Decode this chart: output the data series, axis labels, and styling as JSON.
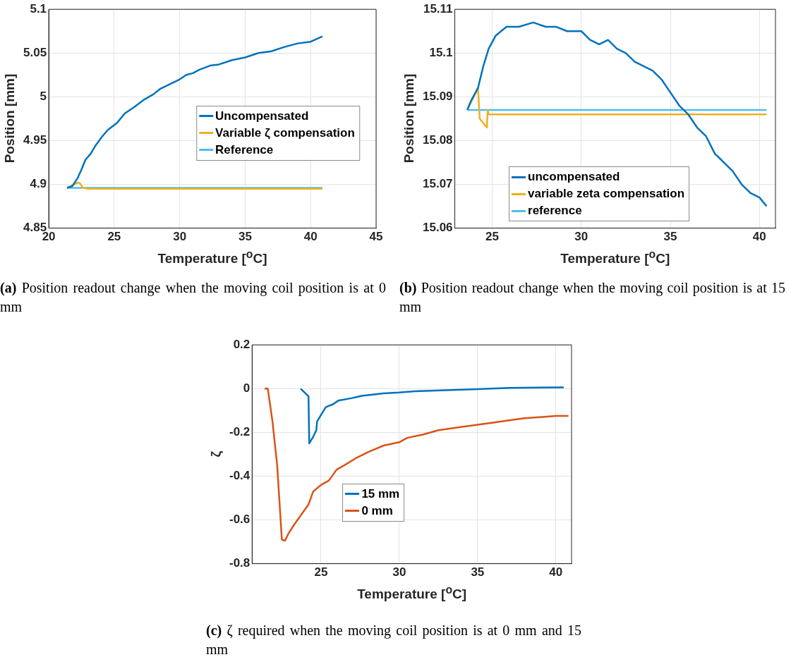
{
  "chart_data": [
    {
      "type": "line",
      "xlabel": "Temperature [$^{o}$C]",
      "ylabel": "Position [mm]",
      "xlim": [
        20,
        45
      ],
      "xticks": [
        20,
        25,
        30,
        35,
        40,
        45
      ],
      "ylim": [
        4.85,
        5.1
      ],
      "yticks": [
        4.85,
        4.9,
        4.95,
        5,
        5.05,
        5.1
      ],
      "grid": true,
      "legend": "right",
      "marker": "none",
      "annotations": [
        "(a) Position readout change when the moving coil position is at 0 mm"
      ],
      "series": [
        {
          "name": "Uncompensated",
          "color": "#0072bd",
          "x": [
            21.4,
            21.8,
            22.2,
            22.5,
            22.8,
            23.2,
            23.6,
            24.1,
            24.5,
            25.2,
            25.8,
            26.5,
            27.3,
            28,
            28.5,
            29.2,
            30,
            30.5,
            31,
            31.5,
            32.4,
            33,
            34,
            35,
            36,
            37,
            38,
            39,
            40,
            40.9
          ],
          "values": [
            4.896,
            4.898,
            4.907,
            4.917,
            4.928,
            4.935,
            4.945,
            4.955,
            4.962,
            4.97,
            4.981,
            4.988,
            4.997,
            5.003,
            5.009,
            5.014,
            5.02,
            5.025,
            5.027,
            5.031,
            5.036,
            5.037,
            5.042,
            5.045,
            5.05,
            5.052,
            5.057,
            5.061,
            5.063,
            5.069
          ]
        },
        {
          "name": "Variable ζ compensation",
          "color": "#edb120",
          "x": [
            21.4,
            21.8,
            22.2,
            22.4,
            22.6,
            23,
            30,
            40.9
          ],
          "values": [
            4.896,
            4.899,
            4.902,
            4.901,
            4.896,
            4.895,
            4.895,
            4.895
          ]
        },
        {
          "name": "Reference",
          "color": "#4dbeee",
          "x": [
            21.4,
            40.9
          ],
          "values": [
            4.896,
            4.896
          ]
        }
      ]
    },
    {
      "type": "line",
      "xlabel": "Temperature [$^{o}$C]",
      "ylabel": "Position [mm]",
      "xlim": [
        22.9,
        40.9
      ],
      "xticks": [
        25,
        30,
        35,
        40
      ],
      "ylim": [
        15.06,
        15.11
      ],
      "yticks": [
        15.06,
        15.07,
        15.08,
        15.09,
        15.1,
        15.11
      ],
      "grid": true,
      "legend": "bottom",
      "marker": "none",
      "annotations": [
        "(b) Position readout change when the moving coil position is at 15 mm"
      ],
      "series": [
        {
          "name": "uncompensated",
          "color": "#0072bd",
          "x": [
            23.6,
            23.8,
            24.2,
            24.5,
            24.8,
            25.2,
            25.8,
            26.5,
            27.3,
            28,
            28.6,
            29.2,
            30,
            30.5,
            31,
            31.5,
            32,
            32.5,
            33,
            33.5,
            34,
            34.5,
            35,
            35.5,
            36,
            36.5,
            37,
            37.5,
            38,
            38.5,
            39,
            39.5,
            40,
            40.4
          ],
          "values": [
            15.087,
            15.089,
            15.092,
            15.097,
            15.101,
            15.104,
            15.106,
            15.106,
            15.107,
            15.106,
            15.106,
            15.105,
            15.105,
            15.103,
            15.102,
            15.103,
            15.101,
            15.1,
            15.098,
            15.097,
            15.096,
            15.094,
            15.091,
            15.088,
            15.086,
            15.083,
            15.081,
            15.077,
            15.075,
            15.073,
            15.07,
            15.068,
            15.067,
            15.065
          ]
        },
        {
          "name": "variable zeta compensation",
          "color": "#edb120",
          "x": [
            23.6,
            24.2,
            24.3,
            24.7,
            24.75,
            24.8,
            30,
            35,
            40.4
          ],
          "values": [
            15.087,
            15.092,
            15.085,
            15.083,
            15.087,
            15.086,
            15.086,
            15.086,
            15.086
          ]
        },
        {
          "name": "reference",
          "color": "#4dbeee",
          "x": [
            23.6,
            40.4
          ],
          "values": [
            15.087,
            15.087
          ]
        }
      ]
    },
    {
      "type": "line",
      "xlabel": "Temperature [$^{o}$C]",
      "ylabel": "ζ",
      "xlim": [
        20.6,
        41
      ],
      "xticks": [
        25,
        30,
        35,
        40
      ],
      "ylim": [
        -0.8,
        0.2
      ],
      "yticks": [
        -0.8,
        -0.6,
        -0.4,
        -0.2,
        0,
        0.2
      ],
      "grid": true,
      "legend": "center",
      "marker": "none",
      "annotations": [
        "(c) ζ required when the moving coil position is at 0 mm and 15 mm"
      ],
      "series": [
        {
          "name": "15 mm",
          "color": "#0072bd",
          "x": [
            23.7,
            24.2,
            24.25,
            24.5,
            24.7,
            24.75,
            25,
            25.3,
            25.8,
            26.1,
            27,
            27.6,
            29,
            30,
            31,
            33,
            35,
            37,
            40.5
          ],
          "values": [
            0,
            -0.035,
            -0.25,
            -0.22,
            -0.19,
            -0.15,
            -0.12,
            -0.085,
            -0.07,
            -0.055,
            -0.043,
            -0.033,
            -0.022,
            -0.018,
            -0.012,
            -0.007,
            -0.002,
            0.003,
            0.006
          ]
        },
        {
          "name": "0 mm",
          "color": "#d95319",
          "x": [
            21.4,
            21.6,
            21.9,
            22.2,
            22.5,
            22.7,
            22.9,
            23.3,
            23.7,
            24.2,
            24.5,
            25,
            25.5,
            26,
            26.5,
            27.3,
            28,
            29,
            30,
            30.5,
            31.5,
            32.5,
            34,
            35,
            36,
            37,
            38,
            39,
            40,
            40.8
          ],
          "values": [
            0,
            0,
            -0.15,
            -0.35,
            -0.69,
            -0.695,
            -0.665,
            -0.62,
            -0.58,
            -0.53,
            -0.47,
            -0.44,
            -0.42,
            -0.37,
            -0.35,
            -0.315,
            -0.29,
            -0.26,
            -0.245,
            -0.225,
            -0.21,
            -0.19,
            -0.175,
            -0.165,
            -0.155,
            -0.145,
            -0.135,
            -0.13,
            -0.125,
            -0.125
          ]
        }
      ]
    }
  ]
}
